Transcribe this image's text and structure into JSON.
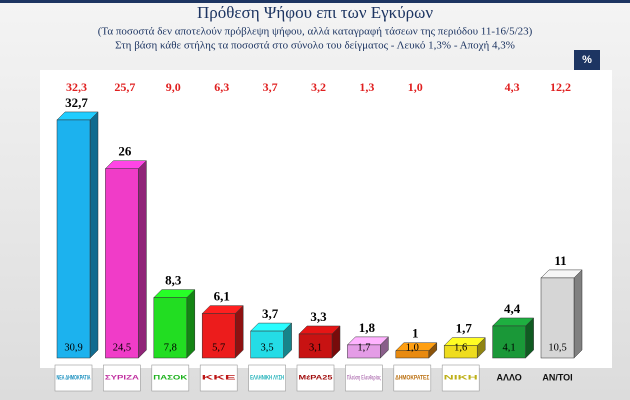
{
  "chart_data": {
    "type": "bar3d",
    "title": "Πρόθεση Ψήφου επι των Εγκύρων",
    "subtitle": [
      "(Τα ποσοστά δεν αποτελούν πρόβλεψη ψήφου, αλλά καταγραφή τάσεων της περιόδου  11-16/5/23)",
      "Στη βάση κάθε στήλης τα ποσοστά στο σύνολο του δείγματος - Λευκό 1,3% - Αποχή 4,3%"
    ],
    "unit": "%",
    "categories": [
      "ΝΕΑ ΔΗΜΟΚΡΑΤΙΑ",
      "ΣΥΡΙΖΑ",
      "ΠΑΣΟΚ",
      "ΚΚΕ",
      "ΕΛΛΗΝΙΚΗ ΛΥΣΗ",
      "ΜέΡΑ25",
      "Πλεύση Ελευθερίας",
      "ΔΗΜΟΚΡΑΤΕΣ",
      "ΝΙΚΗ",
      "ΑΛΛΟ",
      "ΑΝ/ΤΟΙ"
    ],
    "colors": [
      "#1cb2ee",
      "#f03cc8",
      "#22dd22",
      "#ec1c1c",
      "#24dce6",
      "#c81212",
      "#e49ce6",
      "#e88a10",
      "#eedc1e",
      "#1a9838",
      "#d6d6d6"
    ],
    "series": [
      {
        "values": [
          32.7,
          26,
          8.3,
          6.1,
          3.7,
          3.3,
          1.8,
          1,
          1.7,
          4.4,
          11
        ],
        "value_labels": [
          "32,7",
          "26",
          "8,3",
          "6,1",
          "3,7",
          "3,3",
          "1,8",
          "1",
          "1,7",
          "4,4",
          "11"
        ]
      },
      {
        "values": [
          30.9,
          24.5,
          7.8,
          5.7,
          3.5,
          3.1,
          1.7,
          1.0,
          1.6,
          4.1,
          10.5
        ],
        "value_labels": [
          "30,9",
          "24,5",
          "7,8",
          "5,7",
          "3,5",
          "3,1",
          "1,7",
          "1,0",
          "1,6",
          "4,1",
          "10,5"
        ]
      },
      {
        "color": "#e02020",
        "values": [
          32.3,
          25.7,
          9.0,
          6.3,
          3.7,
          3.2,
          1.3,
          1.0,
          null,
          4.3,
          12.2
        ],
        "value_labels": [
          "32,3",
          "25,7",
          "9,0",
          "6,3",
          "3,7",
          "3,2",
          "1,3",
          "1,0",
          null,
          "4,3",
          "12,2"
        ]
      }
    ]
  }
}
